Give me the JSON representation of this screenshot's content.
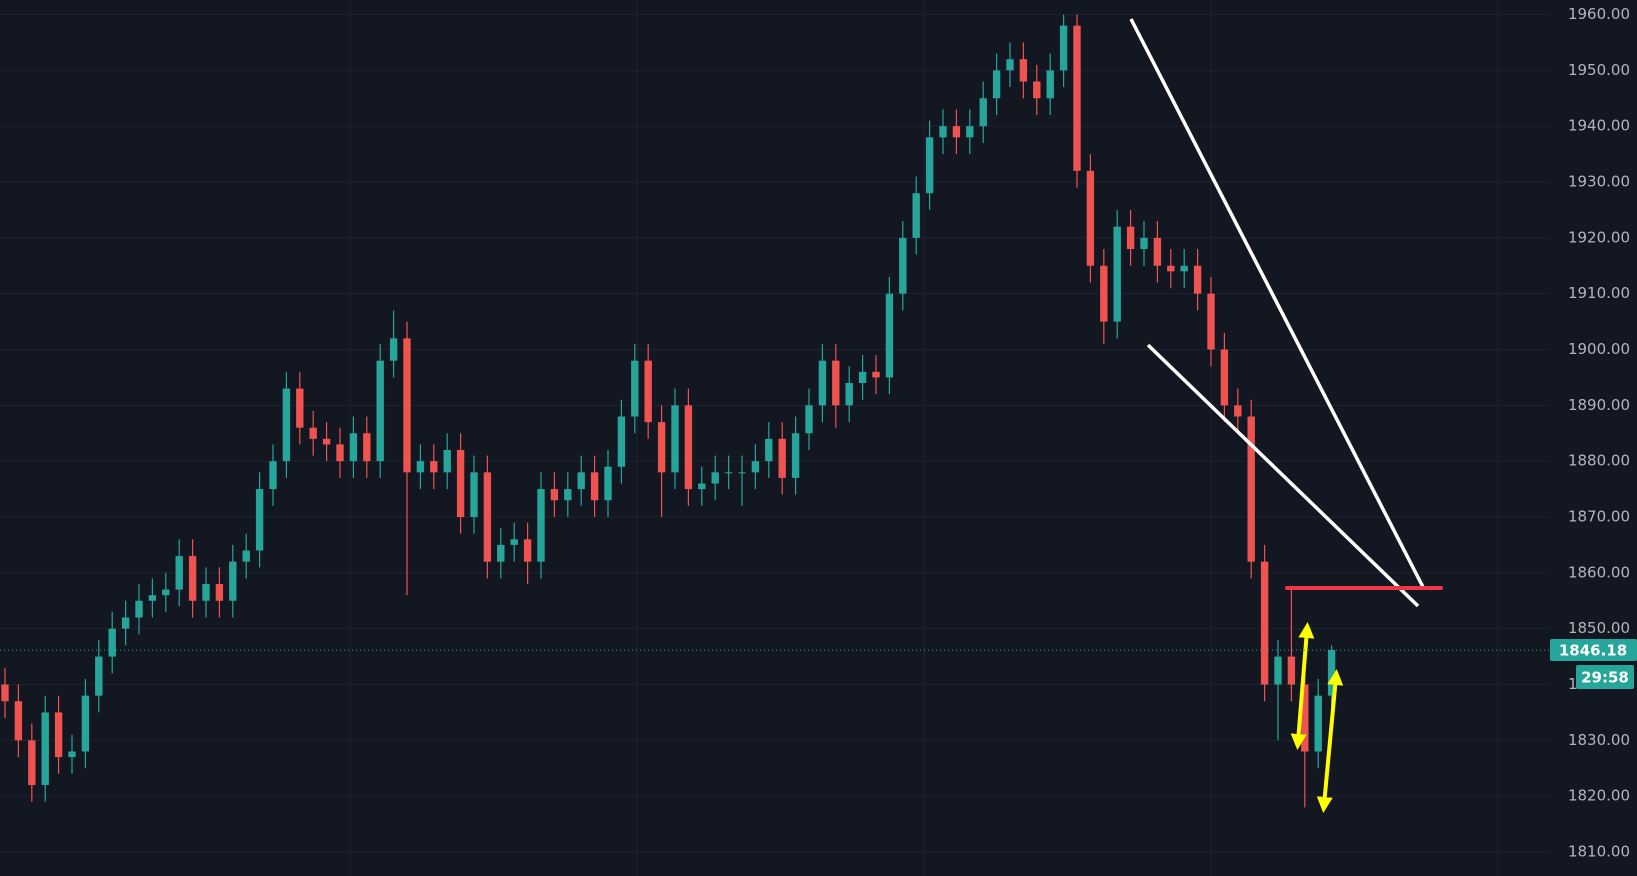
{
  "chart_data": {
    "type": "candlestick",
    "up_color": "#26a69a",
    "down_color": "#ef5350",
    "ylim": [
      1805.7,
      1962.6
    ],
    "yticks": [
      {
        "value": 1810,
        "label": "1810.00"
      },
      {
        "value": 1820,
        "label": "1820.00"
      },
      {
        "value": 1830,
        "label": "1830.00"
      },
      {
        "value": 1840,
        "label": "1840.00"
      },
      {
        "value": 1850,
        "label": "1850.00"
      },
      {
        "value": 1860,
        "label": "1860.00"
      },
      {
        "value": 1870,
        "label": "1870.00"
      },
      {
        "value": 1880,
        "label": "1880.00"
      },
      {
        "value": 1890,
        "label": "1890.00"
      },
      {
        "value": 1900,
        "label": "1900.00"
      },
      {
        "value": 1910,
        "label": "1910.00"
      },
      {
        "value": 1920,
        "label": "1920.00"
      },
      {
        "value": 1930,
        "label": "1930.00"
      },
      {
        "value": 1940,
        "label": "1940.00"
      },
      {
        "value": 1950,
        "label": "1950.00"
      },
      {
        "value": 1960,
        "label": "1960.00"
      }
    ],
    "grid": true,
    "last_price": 1846.18,
    "countdown": "29:58",
    "open": [
      1840,
      1837,
      1830,
      1822,
      1835,
      1827,
      1828,
      1838,
      1845,
      1850,
      1852,
      1855,
      1856,
      1857,
      1863,
      1855,
      1858,
      1855,
      1862,
      1864,
      1875,
      1880,
      1893,
      1886,
      1884,
      1883,
      1880,
      1885,
      1880,
      1898,
      1902,
      1878,
      1880,
      1878,
      1882,
      1870,
      1878,
      1862,
      1865,
      1866,
      1862,
      1875,
      1873,
      1875,
      1878,
      1873,
      1879,
      1888,
      1898,
      1887,
      1878,
      1890,
      1875,
      1876,
      1878,
      1878,
      1878,
      1880,
      1884,
      1877,
      1885,
      1890,
      1898,
      1890,
      1894,
      1896,
      1895,
      1910,
      1920,
      1928,
      1938,
      1940,
      1938,
      1940,
      1945,
      1950,
      1952,
      1948,
      1945,
      1950,
      1958,
      1932,
      1915,
      1905,
      1922,
      1918,
      1920,
      1915,
      1914,
      1915,
      1910,
      1900,
      1890,
      1888,
      1862,
      1840,
      1845,
      1840,
      1828,
      1838
    ],
    "high": [
      1843,
      1840,
      1833,
      1838,
      1838,
      1831,
      1841,
      1848,
      1853,
      1855,
      1858,
      1859,
      1860,
      1866,
      1866,
      1861,
      1861,
      1865,
      1867,
      1878,
      1883,
      1896,
      1896,
      1889,
      1887,
      1886,
      1888,
      1888,
      1901,
      1907,
      1905,
      1883,
      1883,
      1885,
      1885,
      1881,
      1881,
      1868,
      1869,
      1869,
      1878,
      1878,
      1878,
      1881,
      1881,
      1882,
      1891,
      1901,
      1901,
      1890,
      1893,
      1893,
      1879,
      1881,
      1881,
      1881,
      1883,
      1887,
      1887,
      1888,
      1893,
      1901,
      1901,
      1897,
      1899,
      1899,
      1913,
      1923,
      1931,
      1941,
      1943,
      1943,
      1943,
      1948,
      1953,
      1955,
      1955,
      1951,
      1953,
      1960,
      1960,
      1935,
      1918,
      1925,
      1925,
      1923,
      1923,
      1918,
      1918,
      1918,
      1913,
      1903,
      1893,
      1891,
      1865,
      1848,
      1857,
      1843,
      1841,
      1847
    ],
    "low": [
      1834,
      1827,
      1819,
      1819,
      1824,
      1824,
      1825,
      1835,
      1842,
      1847,
      1849,
      1852,
      1853,
      1854,
      1852,
      1852,
      1852,
      1852,
      1859,
      1861,
      1872,
      1877,
      1883,
      1881,
      1880,
      1877,
      1877,
      1877,
      1877,
      1895,
      1856,
      1875,
      1875,
      1875,
      1867,
      1867,
      1859,
      1859,
      1862,
      1858,
      1859,
      1870,
      1870,
      1872,
      1870,
      1870,
      1876,
      1885,
      1884,
      1870,
      1875,
      1872,
      1872,
      1873,
      1875,
      1872,
      1875,
      1877,
      1874,
      1874,
      1882,
      1887,
      1886,
      1887,
      1891,
      1892,
      1892,
      1907,
      1917,
      1925,
      1935,
      1935,
      1935,
      1937,
      1942,
      1947,
      1945,
      1942,
      1942,
      1947,
      1929,
      1912,
      1901,
      1902,
      1915,
      1915,
      1912,
      1911,
      1911,
      1907,
      1897,
      1887,
      1885,
      1859,
      1837,
      1830,
      1837,
      1818,
      1825,
      1835
    ],
    "close": [
      1837,
      1830,
      1822,
      1835,
      1827,
      1828,
      1838,
      1845,
      1850,
      1852,
      1855,
      1856,
      1857,
      1863,
      1855,
      1858,
      1855,
      1862,
      1864,
      1875,
      1880,
      1893,
      1886,
      1884,
      1883,
      1880,
      1885,
      1880,
      1898,
      1902,
      1878,
      1880,
      1878,
      1882,
      1870,
      1878,
      1862,
      1865,
      1866,
      1862,
      1875,
      1873,
      1875,
      1878,
      1873,
      1879,
      1888,
      1898,
      1887,
      1878,
      1890,
      1875,
      1876,
      1878,
      1878,
      1878,
      1880,
      1884,
      1877,
      1885,
      1890,
      1898,
      1890,
      1894,
      1896,
      1895,
      1910,
      1920,
      1928,
      1938,
      1940,
      1938,
      1940,
      1945,
      1950,
      1952,
      1948,
      1945,
      1950,
      1958,
      1932,
      1915,
      1905,
      1922,
      1918,
      1920,
      1915,
      1914,
      1915,
      1910,
      1900,
      1890,
      1888,
      1862,
      1840,
      1845,
      1840,
      1828,
      1838,
      1846.18
    ]
  }
}
